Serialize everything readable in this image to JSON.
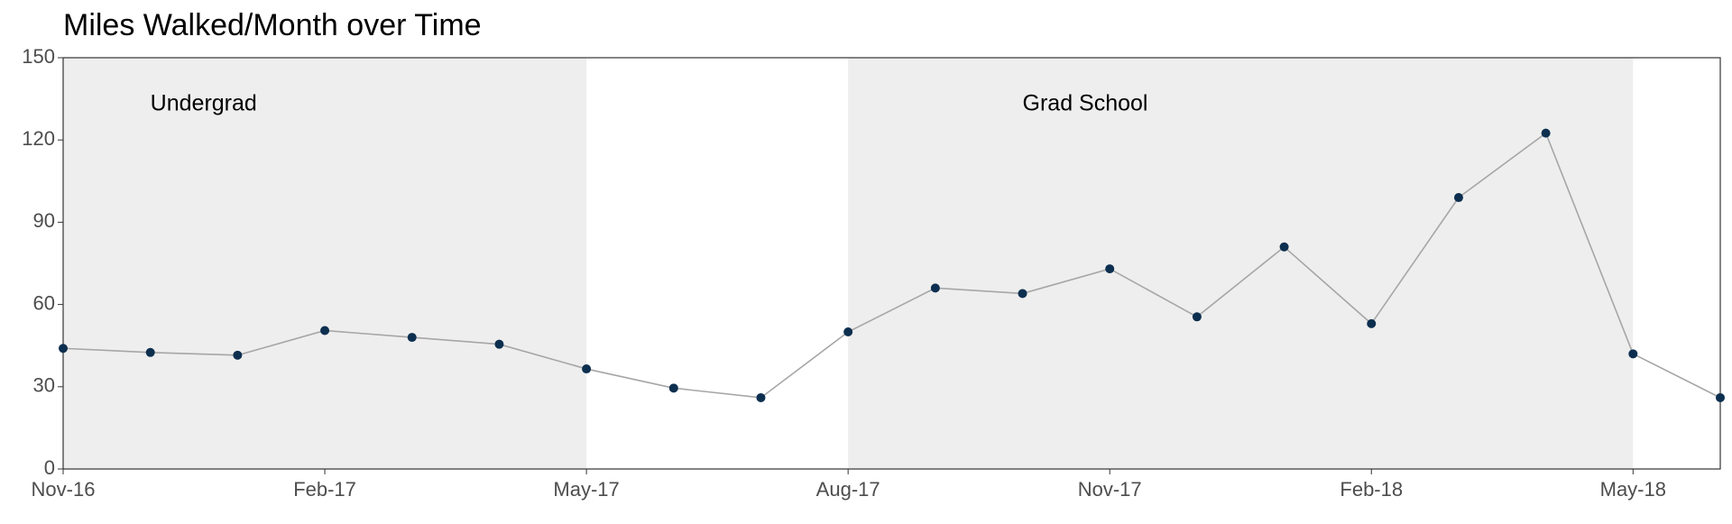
{
  "chart_data": {
    "type": "line",
    "title": "Miles Walked/Month over Time",
    "x": [
      "2016-11",
      "2016-12",
      "2017-01",
      "2017-02",
      "2017-03",
      "2017-04",
      "2017-05",
      "2017-06",
      "2017-07",
      "2017-08",
      "2017-09",
      "2017-10",
      "2017-11",
      "2017-12",
      "2018-01",
      "2018-02",
      "2018-03",
      "2018-04",
      "2018-05",
      "2018-06"
    ],
    "series": [
      {
        "name": "Miles",
        "color": "#0d2f4f",
        "line_color": "#a6a6a6",
        "values": [
          44,
          42.5,
          41.5,
          50.5,
          48,
          45.5,
          36.5,
          29.5,
          26,
          50,
          66,
          64,
          73,
          55.5,
          81,
          53,
          99,
          122.5,
          42,
          26
        ]
      }
    ],
    "xlim": [
      "2016-11",
      "2018-06"
    ],
    "xticks": [
      {
        "value": "2016-11",
        "label": "Nov-16"
      },
      {
        "value": "2017-02",
        "label": "Feb-17"
      },
      {
        "value": "2017-05",
        "label": "May-17"
      },
      {
        "value": "2017-08",
        "label": "Aug-17"
      },
      {
        "value": "2017-11",
        "label": "Nov-17"
      },
      {
        "value": "2018-02",
        "label": "Feb-18"
      },
      {
        "value": "2018-05",
        "label": "May-18"
      }
    ],
    "ylim": [
      0,
      150
    ],
    "yticks": [
      0,
      30,
      60,
      90,
      120,
      150
    ],
    "periods": [
      {
        "label": "Undergrad",
        "start": "2016-11",
        "end": "2017-05",
        "label_x": "2016-12",
        "label_y": 133,
        "color": "#eeeeee"
      },
      {
        "label": "Grad School",
        "start": "2017-08",
        "end": "2018-05",
        "label_x": "2017-10",
        "label_y": 133,
        "color": "#eeeeee"
      }
    ],
    "grid": false
  }
}
